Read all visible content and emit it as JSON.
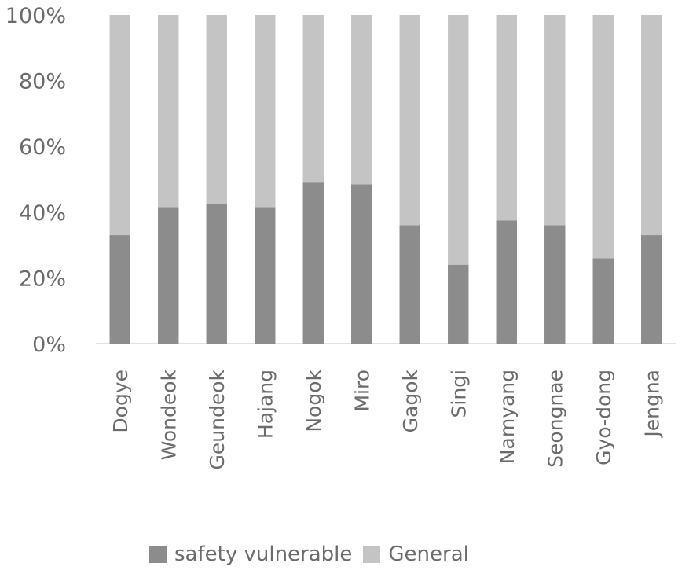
{
  "chart_data": {
    "type": "bar",
    "stacked": true,
    "categories": [
      "Dogye",
      "Wondeok",
      "Geundeok",
      "Hajang",
      "Nogok",
      "Miro",
      "Gagok",
      "Singi",
      "Namyang",
      "Seongnae",
      "Gyo-dong",
      "Jengna"
    ],
    "series": [
      {
        "name": "safety vulnerable",
        "color": "#8c8c8c",
        "values": [
          33,
          41.5,
          42.5,
          41.5,
          49,
          48.5,
          36,
          24,
          37.5,
          36,
          26,
          33
        ]
      },
      {
        "name": "General",
        "color": "#c4c4c4",
        "values": [
          67,
          58.5,
          57.5,
          58.5,
          51,
          51.5,
          64,
          76,
          62.5,
          64,
          74,
          67
        ]
      }
    ],
    "ylim": [
      0,
      100
    ],
    "yticks": [
      "0%",
      "20%",
      "40%",
      "60%",
      "80%",
      "100%"
    ],
    "ytick_values": [
      0,
      20,
      40,
      60,
      80,
      100
    ],
    "legend_position": "bottom",
    "grid": false
  }
}
